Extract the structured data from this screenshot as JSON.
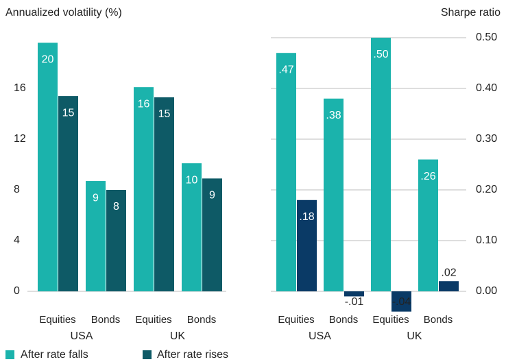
{
  "chart_data": [
    {
      "type": "bar",
      "ylabel": "Annualized volatility (%)",
      "categories": [
        "Equities",
        "Bonds",
        "Equities",
        "Bonds"
      ],
      "groups": [
        "USA",
        "UK"
      ],
      "ylim": [
        0,
        20
      ],
      "yticks": [
        0,
        4,
        8,
        12,
        16
      ],
      "grid": false,
      "series": [
        {
          "name": "After rate falls",
          "color": "#1bb3ac",
          "values": [
            19.6,
            8.7,
            16.1,
            10.1
          ],
          "value_labels": [
            "20",
            "9",
            "16",
            "10"
          ]
        },
        {
          "name": "After rate rises",
          "color": "#0e5a66",
          "values": [
            15.4,
            8.0,
            15.3,
            8.9
          ],
          "value_labels": [
            "15",
            "8",
            "15",
            "9"
          ]
        }
      ]
    },
    {
      "type": "bar",
      "y2label": "Sharpe ratio",
      "categories": [
        "Equities",
        "Bonds",
        "Equities",
        "Bonds"
      ],
      "groups": [
        "USA",
        "UK"
      ],
      "y2lim": [
        0,
        0.5
      ],
      "y2ticks": [
        {
          "value": 0,
          "label": "0.00"
        },
        {
          "value": 0.1,
          "label": "0.10"
        },
        {
          "value": 0.2,
          "label": "0.20"
        },
        {
          "value": 0.3,
          "label": "0.30"
        },
        {
          "value": 0.4,
          "label": "0.40"
        },
        {
          "value": 0.5,
          "label": "0.50"
        }
      ],
      "grid": true,
      "series": [
        {
          "axis": "y2",
          "color": "#1bb3ac",
          "values": [
            0.47,
            0.38,
            0.5,
            0.26
          ],
          "value_labels": [
            ".47",
            ".38",
            ".50",
            ".26"
          ]
        },
        {
          "axis": "y2",
          "color": "#0a3a66",
          "values": [
            0.18,
            -0.01,
            -0.04,
            0.02
          ],
          "value_labels": [
            ".18",
            "-.01",
            "-.04",
            ".02"
          ]
        }
      ]
    }
  ]
}
